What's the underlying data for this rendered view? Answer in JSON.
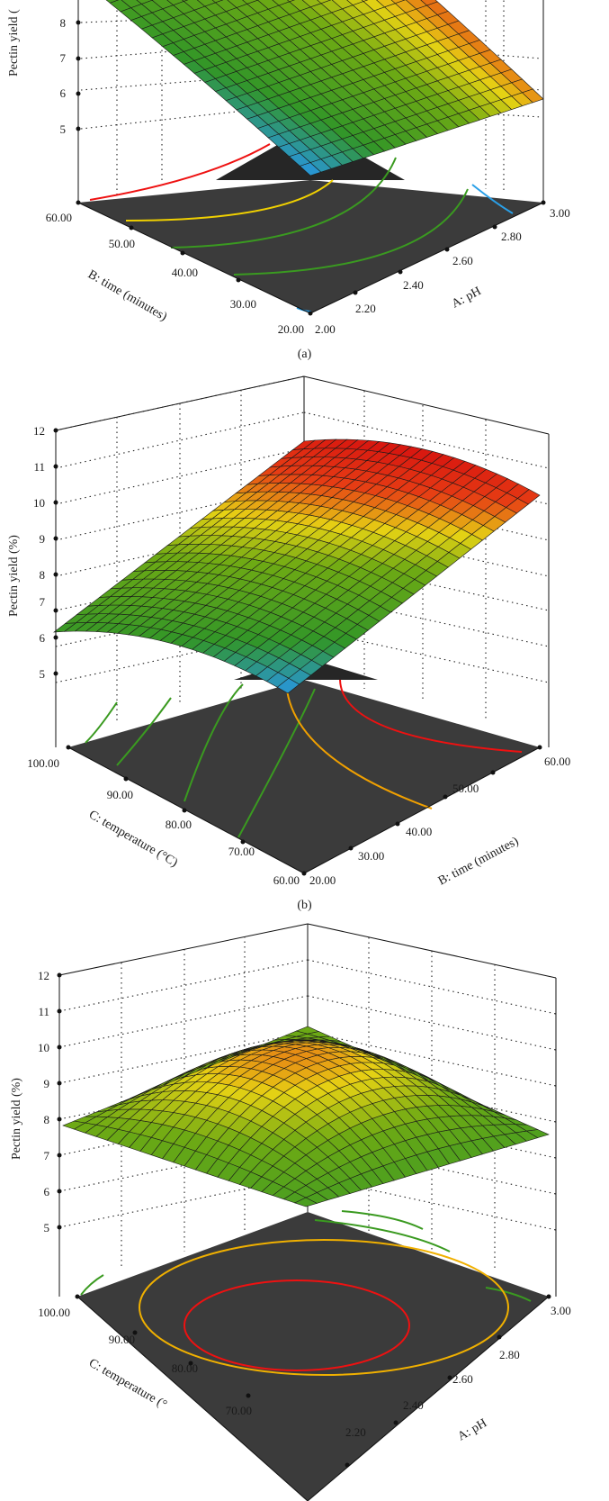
{
  "chart_data": [
    {
      "type": "surface",
      "panel_label": "(a)",
      "zlabel": "Pectin yield (",
      "xlabel": "A: pH",
      "ylabel": "B: time (minutes)",
      "z_ticks": [
        "5",
        "6",
        "7",
        "8"
      ],
      "x_ticks": [
        "2.00",
        "2.20",
        "2.40",
        "2.60",
        "2.80",
        "3.00"
      ],
      "y_ticks": [
        "20.00",
        "30.00",
        "40.00",
        "50.00",
        "60.00"
      ],
      "x_range": [
        2.0,
        3.0
      ],
      "y_range": [
        20,
        60
      ],
      "z_range": [
        4,
        12
      ],
      "corner_values": {
        "x_min_y_min": 4.5,
        "x_max_y_min": 6.8,
        "x_min_y_max": 9.5,
        "x_max_y_max": 9.8
      },
      "peak_yield_estimate": 9.9
    },
    {
      "type": "surface",
      "panel_label": "(b)",
      "zlabel": "Pectin yield (%)",
      "xlabel": "C: temperature (°C)",
      "ylabel": "B: time (minutes)",
      "z_ticks": [
        "5",
        "6",
        "7",
        "8",
        "9",
        "10",
        "11",
        "12"
      ],
      "x_ticks": [
        "60.00",
        "70.00",
        "80.00",
        "90.00",
        "100.00"
      ],
      "y_ticks": [
        "20.00",
        "30.00",
        "40.00",
        "50.00",
        "60.00"
      ],
      "x_range": [
        60,
        100
      ],
      "y_range": [
        20,
        60
      ],
      "z_range": [
        4,
        12
      ],
      "corner_values": {
        "x_min_y_min": 4.5,
        "x_max_y_min": 6.2,
        "x_min_y_max": 10.2,
        "x_max_y_max": 10.6
      },
      "peak_yield_estimate": 11.2
    },
    {
      "type": "surface",
      "panel_label": "",
      "zlabel": "Pectin yield (%)",
      "xlabel": "C: temperature (°",
      "ylabel": "A: pH",
      "z_ticks": [
        "5",
        "6",
        "7",
        "8",
        "9",
        "10",
        "11",
        "12"
      ],
      "x_ticks": [
        "70.00",
        "80.00",
        "90.00",
        "100.00"
      ],
      "y_ticks": [
        "2.20",
        "2.40",
        "2.60",
        "2.80",
        "3.00"
      ],
      "x_range": [
        60,
        100
      ],
      "y_range": [
        2.0,
        3.0
      ],
      "z_range": [
        4,
        12
      ],
      "corner_values": {
        "x_min_y_min": 6.8,
        "x_max_y_min": 8.0,
        "x_min_y_max": 7.0,
        "x_max_y_max": 7.9
      },
      "peak_yield_estimate": 10.0
    }
  ]
}
